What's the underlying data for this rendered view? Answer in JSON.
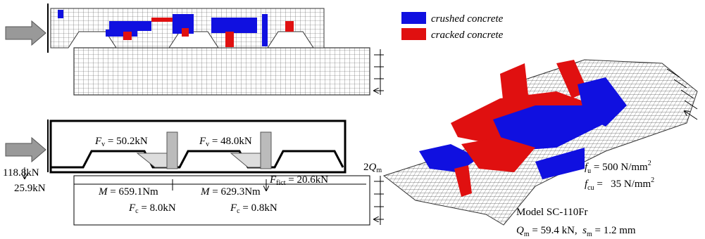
{
  "legend": [
    {
      "label": "crushed concrete"
    },
    {
      "label": "cracked concrete"
    }
  ],
  "annotations": {
    "fv1": {
      "symbol": "F",
      "sub": "v",
      "text": " = 50.2kN"
    },
    "fv2": {
      "symbol": "F",
      "sub": "v",
      "text": " = 48.0kN"
    },
    "load": {
      "text": "118.8kN"
    },
    "shear": {
      "text": "25.9kN"
    },
    "m1": {
      "symbol": "M",
      "text": " = 659.1Nm"
    },
    "m2": {
      "symbol": "M",
      "text": " = 629.3Nm"
    },
    "ffict": {
      "symbol": "F",
      "sub": "fict",
      "text": " = 20.6kN"
    },
    "fc1": {
      "symbol": "F",
      "sub": "c",
      "text": " = 8.0kN"
    },
    "fc2": {
      "symbol": "F",
      "sub": "c",
      "text": " = 0.8kN"
    },
    "support": {
      "text": "2",
      "symbol": "Q",
      "sub": "m"
    }
  },
  "material": {
    "fu": {
      "symbol": "f",
      "sub": "u",
      "text": " = 500 N/mm",
      "sup": "2"
    },
    "fcu": {
      "symbol": "f",
      "sub": "cu",
      "text": " =   35 N/mm",
      "sup": "2"
    }
  },
  "model": {
    "name": "Model SC-110Fr",
    "result": {
      "symbol1": "Q",
      "sub1": "m",
      "text1": " = 59.4 kN,  ",
      "symbol2": "s",
      "sub2": "m",
      "text2": " = 1.2 mm"
    }
  }
}
